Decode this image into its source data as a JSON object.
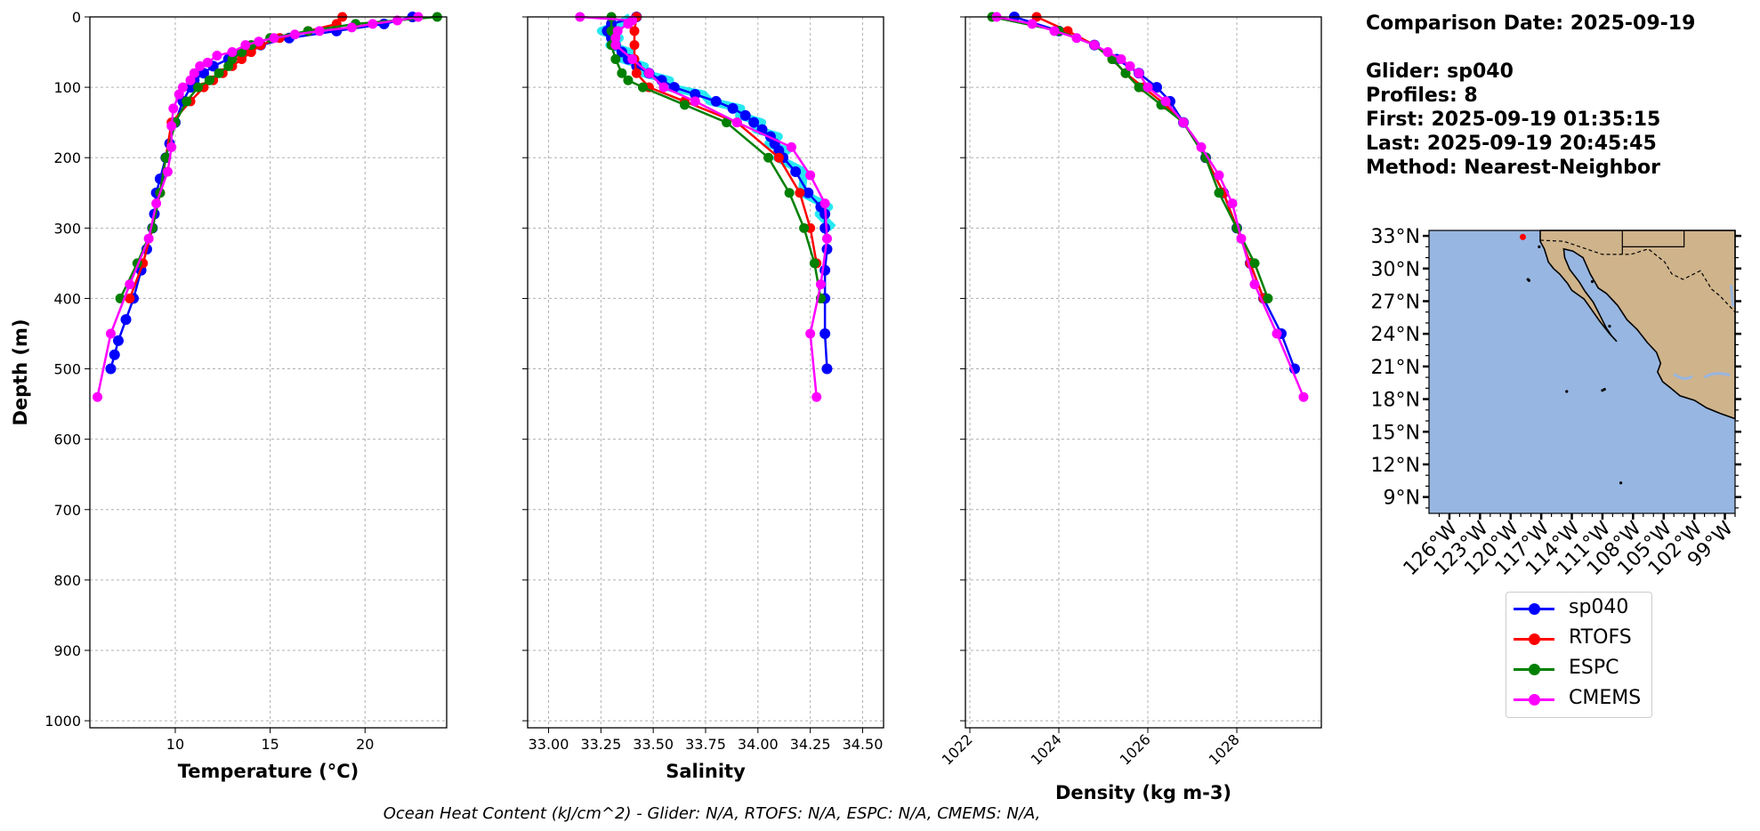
{
  "info": {
    "comparison": "Comparison Date: 2025-09-19",
    "glider": "Glider: sp040",
    "profiles": "Profiles: 8",
    "first": "First: 2025-09-19 01:35:15",
    "last": "Last: 2025-09-19 20:45:45",
    "method": "Method: Nearest-Neighbor"
  },
  "footer": "Ocean Heat Content (kJ/cm^2) - Glider: N/A,  RTOFS: N/A,  ESPC: N/A,  CMEMS: N/A,",
  "colors": {
    "sp040": "#0000ff",
    "RTOFS": "#ff0000",
    "ESPC": "#008000",
    "CMEMS": "#ff00ff",
    "glider_raw": "#00e5ee",
    "ocean": "#97b6e1",
    "land": "#cfb38b",
    "grid": "#b0b0b0"
  },
  "legend": [
    {
      "label": "sp040",
      "color": "#0000ff"
    },
    {
      "label": "RTOFS",
      "color": "#ff0000"
    },
    {
      "label": "ESPC",
      "color": "#008000"
    },
    {
      "label": "CMEMS",
      "color": "#ff00ff"
    }
  ],
  "map": {
    "lat_ticks": [
      "33°N",
      "30°N",
      "27°N",
      "24°N",
      "21°N",
      "18°N",
      "15°N",
      "12°N",
      "9°N"
    ],
    "lon_ticks": [
      "126°W",
      "123°W",
      "120°W",
      "117°W",
      "114°W",
      "111°W",
      "108°W",
      "105°W",
      "102°W",
      "99°W"
    ],
    "lat_range": [
      7.5,
      33.5
    ],
    "lon_range": [
      -128,
      -98
    ],
    "projection": "PlateCarree"
  },
  "chart_data": [
    {
      "type": "line",
      "panel": "temperature",
      "xlabel": "Temperature (°C)",
      "ylabel": "Depth (m)",
      "xlim": [
        5.5,
        24.3
      ],
      "ylim": [
        1010,
        0
      ],
      "x_ticks": [
        10,
        15,
        20
      ],
      "y_ticks": [
        0,
        100,
        200,
        300,
        400,
        500,
        600,
        700,
        800,
        900,
        1000
      ],
      "grid": true,
      "series": [
        {
          "name": "sp040",
          "depth": [
            0,
            10,
            20,
            30,
            40,
            50,
            60,
            70,
            80,
            90,
            100,
            120,
            150,
            180,
            200,
            230,
            250,
            280,
            300,
            330,
            360,
            400,
            430,
            460,
            480,
            500
          ],
          "values": [
            22.5,
            21.0,
            18.5,
            16.0,
            14.5,
            13.5,
            12.8,
            12.0,
            11.5,
            11.0,
            10.8,
            10.4,
            10.0,
            9.7,
            9.5,
            9.2,
            9.0,
            8.9,
            8.8,
            8.5,
            8.2,
            7.8,
            7.4,
            7.0,
            6.8,
            6.6
          ]
        },
        {
          "name": "RTOFS",
          "depth": [
            0,
            10,
            20,
            30,
            40,
            50,
            60,
            70,
            80,
            90,
            100,
            120,
            150,
            200,
            250,
            300,
            350,
            400
          ],
          "values": [
            18.8,
            18.5,
            17.0,
            15.5,
            14.5,
            14.0,
            13.5,
            13.0,
            12.5,
            12.0,
            11.5,
            10.8,
            9.8,
            9.5,
            9.2,
            8.8,
            8.3,
            7.6
          ]
        },
        {
          "name": "ESPC",
          "depth": [
            0,
            10,
            20,
            30,
            40,
            50,
            60,
            70,
            80,
            90,
            100,
            120,
            150,
            200,
            250,
            300,
            350,
            400
          ],
          "values": [
            23.8,
            19.5,
            17.0,
            15.0,
            14.0,
            13.5,
            13.0,
            12.8,
            12.3,
            11.8,
            11.2,
            10.6,
            10.0,
            9.5,
            9.2,
            8.8,
            8.0,
            7.1
          ]
        },
        {
          "name": "CMEMS",
          "depth": [
            0,
            5,
            10,
            15,
            20,
            25,
            30,
            35,
            40,
            50,
            55,
            65,
            70,
            80,
            90,
            100,
            110,
            130,
            155,
            185,
            220,
            265,
            315,
            380,
            450,
            540
          ],
          "values": [
            22.8,
            21.7,
            20.4,
            19.3,
            17.6,
            16.3,
            15.2,
            14.4,
            13.7,
            13.0,
            12.2,
            11.7,
            11.3,
            11.0,
            10.8,
            10.4,
            10.2,
            9.9,
            9.8,
            9.8,
            9.6,
            9.0,
            8.6,
            7.6,
            6.6,
            5.9
          ]
        }
      ]
    },
    {
      "type": "line",
      "panel": "salinity",
      "xlabel": "Salinity",
      "xlim": [
        32.9,
        34.6
      ],
      "ylim": [
        1010,
        0
      ],
      "x_ticks": [
        33.0,
        33.25,
        33.5,
        33.75,
        34.0,
        34.25,
        34.5
      ],
      "x_tick_labels": [
        "33.00",
        "33.25",
        "33.50",
        "33.75",
        "34.00",
        "34.25",
        "34.50"
      ],
      "grid": true,
      "series": [
        {
          "name": "sp040",
          "depth": [
            0,
            10,
            20,
            30,
            40,
            50,
            60,
            70,
            80,
            90,
            100,
            110,
            120,
            130,
            140,
            150,
            160,
            170,
            180,
            190,
            200,
            220,
            250,
            270,
            280,
            300,
            330,
            360,
            400,
            450,
            500
          ],
          "values": [
            33.42,
            33.3,
            33.28,
            33.3,
            33.32,
            33.35,
            33.38,
            33.42,
            33.48,
            33.54,
            33.6,
            33.7,
            33.8,
            33.88,
            33.94,
            33.98,
            34.02,
            34.06,
            34.08,
            34.1,
            34.12,
            34.18,
            34.24,
            34.3,
            34.32,
            34.32,
            34.33,
            34.32,
            34.32,
            34.32,
            34.33
          ]
        },
        {
          "name": "RTOFS",
          "depth": [
            0,
            20,
            40,
            60,
            80,
            100,
            120,
            150,
            200,
            250,
            300,
            350
          ],
          "values": [
            33.42,
            33.41,
            33.41,
            33.41,
            33.42,
            33.48,
            33.65,
            33.9,
            34.1,
            34.2,
            34.25,
            34.28
          ]
        },
        {
          "name": "ESPC",
          "depth": [
            0,
            20,
            40,
            60,
            80,
            90,
            100,
            125,
            150,
            200,
            250,
            300,
            350,
            400
          ],
          "values": [
            33.3,
            33.3,
            33.3,
            33.32,
            33.35,
            33.38,
            33.45,
            33.65,
            33.85,
            34.05,
            34.15,
            34.22,
            34.27,
            34.3
          ]
        },
        {
          "name": "CMEMS",
          "depth": [
            0,
            5,
            10,
            20,
            30,
            40,
            60,
            80,
            100,
            120,
            150,
            185,
            225,
            265,
            315,
            380,
            450,
            540
          ],
          "values": [
            33.15,
            33.4,
            33.38,
            33.33,
            33.32,
            33.32,
            33.4,
            33.48,
            33.55,
            33.7,
            33.9,
            34.16,
            34.25,
            34.32,
            34.33,
            34.3,
            34.25,
            34.28
          ]
        }
      ]
    },
    {
      "type": "line",
      "panel": "density",
      "xlabel": "Density (kg m-3)",
      "xlim": [
        1021.9,
        1029.9
      ],
      "ylim": [
        1010,
        0
      ],
      "x_ticks": [
        1022,
        1024,
        1026,
        1028
      ],
      "grid": true,
      "series": [
        {
          "name": "sp040",
          "depth": [
            0,
            20,
            40,
            60,
            80,
            100,
            120,
            150,
            200,
            250,
            300,
            350,
            400,
            450,
            500
          ],
          "values": [
            1023.0,
            1024.0,
            1024.8,
            1025.3,
            1025.8,
            1026.2,
            1026.5,
            1026.8,
            1027.3,
            1027.7,
            1028.0,
            1028.3,
            1028.6,
            1029.0,
            1029.3
          ]
        },
        {
          "name": "RTOFS",
          "depth": [
            0,
            20,
            40,
            60,
            80,
            100,
            125,
            150,
            200,
            250,
            300,
            350,
            400
          ],
          "values": [
            1023.5,
            1024.2,
            1024.8,
            1025.2,
            1025.5,
            1025.9,
            1026.4,
            1026.8,
            1027.3,
            1027.7,
            1028.0,
            1028.3,
            1028.6
          ]
        },
        {
          "name": "ESPC",
          "depth": [
            0,
            20,
            40,
            60,
            80,
            100,
            125,
            150,
            200,
            250,
            300,
            350,
            400
          ],
          "values": [
            1022.5,
            1024.0,
            1024.8,
            1025.2,
            1025.5,
            1025.8,
            1026.3,
            1026.8,
            1027.3,
            1027.6,
            1028.0,
            1028.4,
            1028.7
          ]
        },
        {
          "name": "CMEMS",
          "depth": [
            0,
            10,
            20,
            30,
            40,
            50,
            60,
            70,
            80,
            100,
            120,
            150,
            185,
            225,
            265,
            315,
            380,
            450,
            540
          ],
          "values": [
            1022.6,
            1023.4,
            1023.9,
            1024.4,
            1024.8,
            1025.1,
            1025.4,
            1025.6,
            1025.8,
            1026.0,
            1026.4,
            1026.8,
            1027.2,
            1027.6,
            1027.9,
            1028.1,
            1028.4,
            1028.9,
            1029.5
          ]
        }
      ]
    }
  ]
}
